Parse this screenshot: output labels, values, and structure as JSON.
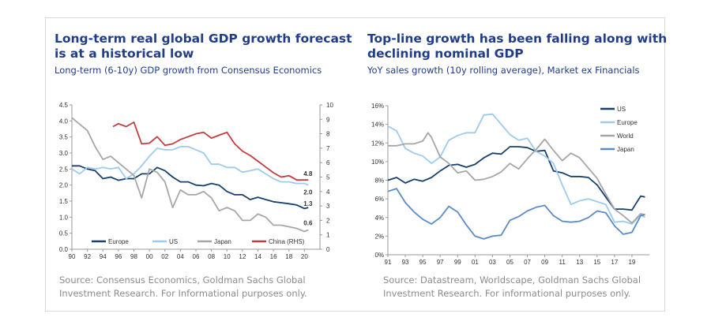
{
  "chart_data": [
    {
      "type": "line",
      "title": "Long-term real global GDP growth forecast\nis at a historical low",
      "subtitle": "Long-term (6-10y) GDP growth from Consensus Economics",
      "source": "Source: Consensus Economics, Goldman Sachs Global Investment Research. For Informational purposes only.",
      "xlim": [
        1990,
        2022
      ],
      "x_ticks": [
        1990,
        1992,
        1994,
        1996,
        1998,
        2000,
        2002,
        2004,
        2006,
        2008,
        2010,
        2012,
        2014,
        2016,
        2018,
        2020
      ],
      "x_tick_labels": [
        "90",
        "92",
        "94",
        "96",
        "98",
        "00",
        "02",
        "04",
        "06",
        "08",
        "10",
        "12",
        "14",
        "16",
        "18",
        "20"
      ],
      "ylim": [
        0,
        4.5
      ],
      "y_ticks": [
        "0.0",
        "0.5",
        "1.0",
        "1.5",
        "2.0",
        "2.5",
        "3.0",
        "3.5",
        "4.0",
        "4.5"
      ],
      "y2lim": [
        0,
        10
      ],
      "y2_ticks": [
        "0",
        "1",
        "2",
        "3",
        "4",
        "5",
        "6",
        "7",
        "8",
        "9",
        "10"
      ],
      "grid": false,
      "legend": "bottom",
      "series": [
        {
          "name": "Europe",
          "axis": "left",
          "color": "#17406d",
          "end_label": "1.3",
          "x": [
            1990,
            1991,
            1992,
            1993,
            1994,
            1995,
            1996,
            1997,
            1998,
            1999,
            2000,
            2001,
            2002,
            2003,
            2004,
            2005,
            2006,
            2007,
            2008,
            2009,
            2010,
            2011,
            2012,
            2013,
            2014,
            2015,
            2016,
            2017,
            2018,
            2019,
            2020,
            2020.5
          ],
          "y": [
            2.6,
            2.6,
            2.5,
            2.45,
            2.2,
            2.25,
            2.15,
            2.2,
            2.2,
            2.35,
            2.35,
            2.55,
            2.45,
            2.25,
            2.1,
            2.1,
            2.0,
            1.98,
            2.05,
            2.0,
            1.8,
            1.7,
            1.7,
            1.55,
            1.62,
            1.55,
            1.48,
            1.45,
            1.42,
            1.38,
            1.27,
            1.3
          ]
        },
        {
          "name": "US",
          "axis": "left",
          "color": "#9dcbee",
          "end_label": "2.0",
          "x": [
            1990,
            1991,
            1992,
            1993,
            1994,
            1995,
            1996,
            1997,
            1998,
            1999,
            2000,
            2001,
            2002,
            2003,
            2004,
            2005,
            2006,
            2007,
            2008,
            2009,
            2010,
            2011,
            2012,
            2013,
            2014,
            2015,
            2016,
            2017,
            2018,
            2019,
            2020,
            2020.5
          ],
          "y": [
            2.5,
            2.35,
            2.55,
            2.5,
            2.55,
            2.5,
            2.55,
            2.2,
            2.35,
            2.6,
            2.9,
            3.15,
            3.1,
            3.1,
            3.2,
            3.2,
            3.1,
            3.0,
            2.65,
            2.65,
            2.55,
            2.55,
            2.4,
            2.45,
            2.5,
            2.35,
            2.2,
            2.1,
            2.1,
            2.05,
            2.05,
            2.0
          ]
        },
        {
          "name": "Japan",
          "axis": "left",
          "color": "#a6a6a6",
          "end_label": "0.6",
          "x": [
            1990,
            1991,
            1992,
            1993,
            1994,
            1995,
            1996,
            1997,
            1998,
            1999,
            2000,
            2001,
            2002,
            2003,
            2004,
            2005,
            2006,
            2007,
            2008,
            2009,
            2010,
            2011,
            2012,
            2013,
            2014,
            2015,
            2016,
            2017,
            2018,
            2019,
            2020,
            2020.5
          ],
          "y": [
            4.1,
            3.9,
            3.7,
            3.2,
            2.8,
            2.9,
            2.7,
            2.5,
            2.3,
            1.6,
            2.5,
            2.4,
            2.1,
            1.3,
            1.85,
            1.7,
            1.7,
            1.8,
            1.6,
            1.2,
            1.3,
            1.2,
            0.9,
            0.9,
            1.1,
            1.0,
            0.75,
            0.75,
            0.7,
            0.65,
            0.55,
            0.6
          ]
        },
        {
          "name": "China (RHS)",
          "axis": "right",
          "color": "#c43c3f",
          "end_label": "4.8",
          "x": [
            1995.3,
            1996,
            1997,
            1998,
            1999,
            2000,
            2001,
            2002,
            2003,
            2004,
            2005,
            2006,
            2007,
            2008,
            2009,
            2010,
            2011,
            2012,
            2013,
            2014,
            2015,
            2016,
            2017,
            2018,
            2019,
            2020.5
          ],
          "y": [
            8.5,
            8.7,
            8.5,
            8.8,
            7.3,
            7.35,
            7.8,
            7.2,
            7.3,
            7.6,
            7.8,
            8.0,
            8.1,
            7.7,
            7.9,
            8.1,
            7.3,
            6.8,
            6.5,
            6.1,
            5.7,
            5.3,
            5.0,
            5.1,
            4.8,
            4.8
          ]
        }
      ]
    },
    {
      "type": "line",
      "title": "Top-line growth has been falling along with\ndeclining nominal GDP",
      "subtitle": "YoY sales growth (10y rolling average), Market ex Financials",
      "source": "Source: Datastream, Worldscape, Goldman Sachs Global Investment Research. For informational purposes only.",
      "xlim": [
        1991,
        2021
      ],
      "x_ticks": [
        1991,
        1993,
        1995,
        1997,
        1999,
        2001,
        2003,
        2005,
        2007,
        2009,
        2011,
        2013,
        2015,
        2017,
        2019
      ],
      "x_tick_labels": [
        "91",
        "93",
        "95",
        "97",
        "99",
        "01",
        "03",
        "05",
        "07",
        "09",
        "11",
        "13",
        "15",
        "17",
        "19"
      ],
      "ylim": [
        0,
        16
      ],
      "y_ticks": [
        "0%",
        "2%",
        "4%",
        "6%",
        "8%",
        "10%",
        "12%",
        "14%",
        "16%"
      ],
      "grid": false,
      "legend": "top-right",
      "series": [
        {
          "name": "US",
          "color": "#17406d",
          "x": [
            1991,
            1992,
            1993,
            1994,
            1995,
            1996,
            1997,
            1998,
            1999,
            2000,
            2001,
            2002,
            2003,
            2004,
            2005,
            2006,
            2007,
            2008,
            2009,
            2010,
            2011,
            2012,
            2013,
            2014,
            2015,
            2016,
            2017,
            2018,
            2019,
            2020,
            2020.5
          ],
          "y": [
            8.0,
            8.3,
            7.7,
            8.1,
            7.9,
            8.3,
            9.0,
            9.6,
            9.7,
            9.4,
            9.7,
            10.4,
            10.9,
            10.8,
            11.6,
            11.6,
            11.5,
            11.1,
            11.2,
            9.0,
            8.8,
            8.4,
            8.4,
            8.3,
            7.5,
            6.2,
            4.9,
            4.9,
            4.8,
            6.3,
            6.2
          ]
        },
        {
          "name": "Europe",
          "color": "#9dcbee",
          "x": [
            1991,
            1992,
            1993,
            1994,
            1995,
            1996,
            1997,
            1998,
            1999,
            2000,
            2001,
            2002,
            2003,
            2004,
            2005,
            2006,
            2007,
            2008,
            2009,
            2010,
            2011,
            2012,
            2013,
            2014,
            2015,
            2016,
            2017,
            2018,
            2019,
            2020,
            2020.5
          ],
          "y": [
            13.8,
            13.3,
            11.4,
            10.9,
            10.6,
            9.8,
            10.5,
            12.3,
            12.8,
            13.1,
            13.1,
            15.0,
            15.1,
            14.0,
            12.9,
            12.3,
            12.5,
            11.1,
            10.6,
            9.8,
            7.5,
            5.4,
            5.8,
            6.0,
            5.7,
            5.4,
            3.5,
            3.6,
            3.3,
            4.3,
            4.0
          ]
        },
        {
          "name": "World",
          "color": "#a6a6a6",
          "x": [
            1991,
            1992,
            1993,
            1994,
            1995,
            1995.6,
            1996,
            1997,
            1998,
            1999,
            2000,
            2001,
            2002,
            2003,
            2004,
            2005,
            2006,
            2007,
            2008,
            2009,
            2010,
            2011,
            2012,
            2013,
            2014,
            2015,
            2016,
            2017,
            2018,
            2019,
            2020,
            2020.5
          ],
          "y": [
            11.7,
            11.7,
            11.9,
            11.9,
            12.2,
            13.1,
            12.6,
            10.5,
            9.8,
            8.8,
            9.0,
            8.0,
            8.1,
            8.4,
            8.9,
            9.8,
            9.2,
            10.3,
            11.3,
            12.4,
            11.2,
            10.1,
            10.9,
            10.4,
            9.3,
            8.2,
            6.5,
            4.9,
            4.2,
            3.4,
            4.4,
            4.3
          ]
        },
        {
          "name": "Japan",
          "color": "#5b8cc4",
          "x": [
            1991,
            1992,
            1993,
            1994,
            1995,
            1996,
            1997,
            1998,
            1999,
            2000,
            2001,
            2002,
            2003,
            2004,
            2005,
            2006,
            2007,
            2008,
            2009,
            2010,
            2011,
            2012,
            2013,
            2014,
            2015,
            2016,
            2017,
            2018,
            2019,
            2020,
            2020.5
          ],
          "y": [
            6.8,
            7.1,
            5.6,
            4.6,
            3.8,
            3.3,
            4.0,
            5.2,
            4.6,
            3.2,
            2.0,
            1.7,
            2.0,
            2.1,
            3.7,
            4.1,
            4.7,
            5.1,
            5.3,
            4.2,
            3.6,
            3.5,
            3.6,
            4.0,
            4.7,
            4.5,
            3.1,
            2.2,
            2.4,
            4.2,
            4.3
          ]
        }
      ]
    }
  ]
}
